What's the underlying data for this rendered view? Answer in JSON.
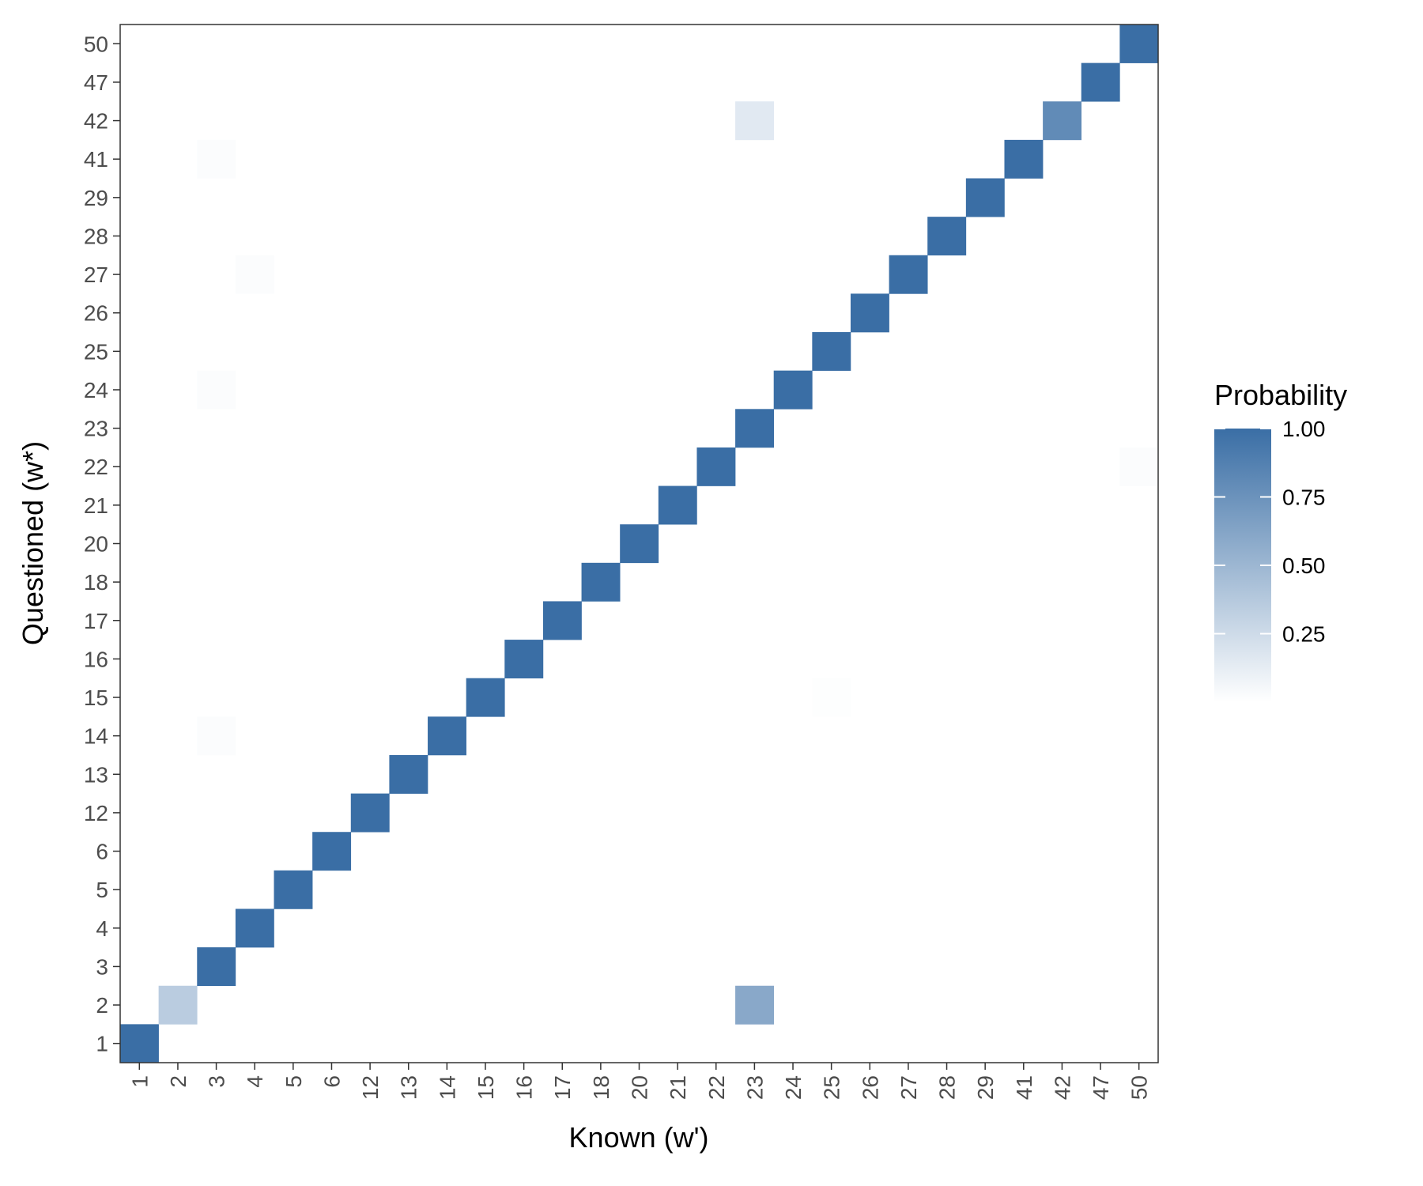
{
  "chart_data": {
    "type": "heatmap",
    "xlabel": "Known (w')",
    "ylabel": "Questioned (w*)",
    "x_categories": [
      "1",
      "2",
      "3",
      "4",
      "5",
      "6",
      "12",
      "13",
      "14",
      "15",
      "16",
      "17",
      "18",
      "20",
      "21",
      "22",
      "23",
      "24",
      "25",
      "26",
      "27",
      "28",
      "29",
      "41",
      "42",
      "47",
      "50"
    ],
    "y_categories": [
      "1",
      "2",
      "3",
      "4",
      "5",
      "6",
      "12",
      "13",
      "14",
      "15",
      "16",
      "17",
      "18",
      "20",
      "21",
      "22",
      "23",
      "24",
      "25",
      "26",
      "27",
      "28",
      "29",
      "41",
      "42",
      "47",
      "50"
    ],
    "cells": [
      {
        "x": "1",
        "y": "1",
        "value": 1.0
      },
      {
        "x": "2",
        "y": "2",
        "value": 0.35
      },
      {
        "x": "23",
        "y": "2",
        "value": 0.6
      },
      {
        "x": "3",
        "y": "3",
        "value": 1.0
      },
      {
        "x": "4",
        "y": "4",
        "value": 1.0
      },
      {
        "x": "5",
        "y": "5",
        "value": 1.0
      },
      {
        "x": "6",
        "y": "6",
        "value": 1.0
      },
      {
        "x": "12",
        "y": "12",
        "value": 1.0
      },
      {
        "x": "13",
        "y": "13",
        "value": 1.0
      },
      {
        "x": "14",
        "y": "14",
        "value": 1.0
      },
      {
        "x": "3",
        "y": "14",
        "value": 0.02
      },
      {
        "x": "15",
        "y": "15",
        "value": 1.0
      },
      {
        "x": "25",
        "y": "15",
        "value": 0.01
      },
      {
        "x": "16",
        "y": "16",
        "value": 1.0
      },
      {
        "x": "17",
        "y": "17",
        "value": 1.0
      },
      {
        "x": "18",
        "y": "18",
        "value": 1.0
      },
      {
        "x": "20",
        "y": "20",
        "value": 1.0
      },
      {
        "x": "21",
        "y": "21",
        "value": 1.0
      },
      {
        "x": "22",
        "y": "22",
        "value": 1.0
      },
      {
        "x": "50",
        "y": "22",
        "value": 0.02
      },
      {
        "x": "23",
        "y": "23",
        "value": 1.0
      },
      {
        "x": "24",
        "y": "24",
        "value": 1.0
      },
      {
        "x": "3",
        "y": "24",
        "value": 0.02
      },
      {
        "x": "25",
        "y": "25",
        "value": 1.0
      },
      {
        "x": "26",
        "y": "26",
        "value": 1.0
      },
      {
        "x": "27",
        "y": "27",
        "value": 1.0
      },
      {
        "x": "4",
        "y": "27",
        "value": 0.02
      },
      {
        "x": "28",
        "y": "28",
        "value": 1.0
      },
      {
        "x": "29",
        "y": "29",
        "value": 1.0
      },
      {
        "x": "41",
        "y": "41",
        "value": 1.0
      },
      {
        "x": "3",
        "y": "41",
        "value": 0.02
      },
      {
        "x": "42",
        "y": "42",
        "value": 0.8
      },
      {
        "x": "23",
        "y": "42",
        "value": 0.15
      },
      {
        "x": "47",
        "y": "47",
        "value": 1.0
      },
      {
        "x": "50",
        "y": "50",
        "value": 1.0
      }
    ],
    "legend": {
      "title": "Probability",
      "breaks": [
        0.25,
        0.5,
        0.75,
        1.0
      ],
      "labels": [
        "0.25",
        "0.50",
        "0.75",
        "1.00"
      ],
      "range": [
        0.0,
        1.0
      ],
      "low_color": "#ffffff",
      "high_color": "#3a6ea5"
    }
  }
}
